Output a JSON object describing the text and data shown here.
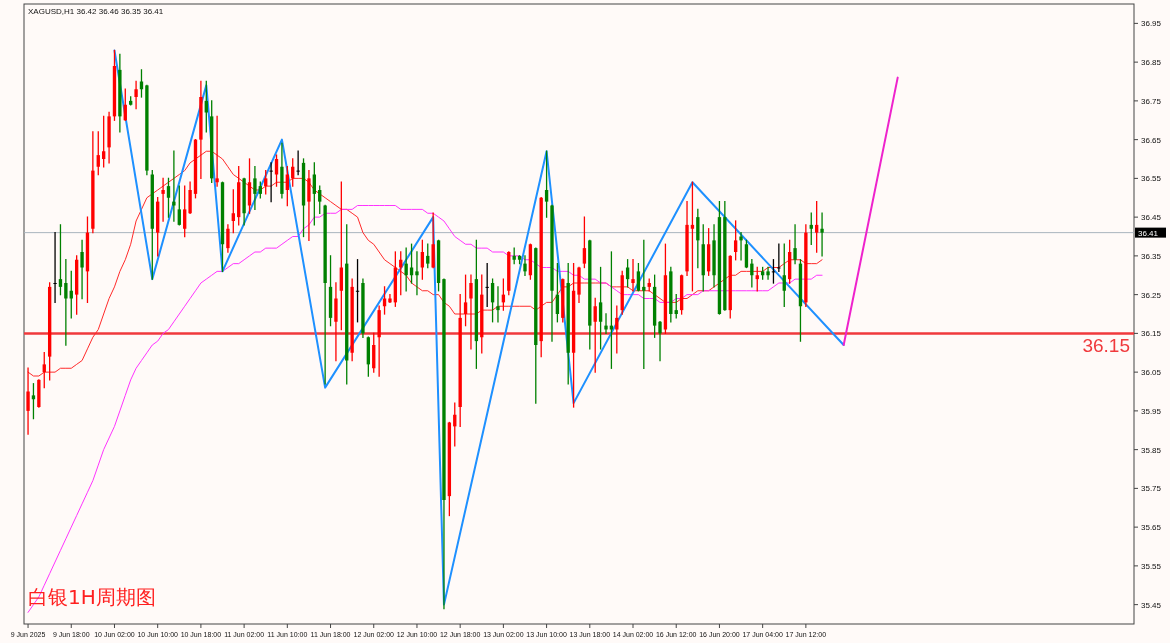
{
  "chart_data": {
    "type": "candlestick",
    "title": "XAGUSD,H1  36.42 36.46 36.35 36.41",
    "annotations": [
      "白银1H周期图"
    ],
    "categories": [
      "9 Jun 2025",
      null,
      null,
      null,
      null,
      null,
      null,
      null,
      "9 Jun 18:00",
      null,
      null,
      null,
      null,
      null,
      null,
      null,
      "10 Jun 02:00",
      null,
      null,
      null,
      null,
      null,
      null,
      null,
      "10 Jun 10:00",
      null,
      null,
      null,
      null,
      null,
      null,
      null,
      "10 Jun 18:00",
      null,
      null,
      null,
      null,
      null,
      null,
      null,
      "11 Jun 02:00",
      null,
      null,
      null,
      null,
      null,
      null,
      null,
      "11 Jun 10:00",
      null,
      null,
      null,
      null,
      null,
      null,
      null,
      "11 Jun 18:00",
      null,
      null,
      null,
      null,
      null,
      null,
      null,
      "12 Jun 02:00",
      null,
      null,
      null,
      null,
      null,
      null,
      null,
      "12 Jun 10:00",
      null,
      null,
      null,
      null,
      null,
      null,
      null,
      "12 Jun 18:00",
      null,
      null,
      null,
      null,
      null,
      null,
      null,
      "13 Jun 02:00",
      null,
      null,
      null,
      null,
      null,
      null,
      null,
      "13 Jun 10:00",
      null,
      null,
      null,
      null,
      null,
      null,
      null,
      "13 Jun 18:00",
      null,
      null,
      null,
      null,
      null,
      null,
      null,
      "14 Jun 02:00",
      null,
      null,
      null,
      null,
      null,
      null,
      null,
      "16 Jun 12:00",
      null,
      null,
      null,
      null,
      null,
      null,
      null,
      "16 Jun 20:00",
      null,
      null,
      null,
      null,
      null,
      null,
      null,
      "17 Jun 04:00",
      null,
      null,
      null,
      null,
      null,
      null,
      null,
      "17 Jun 12:00",
      null,
      null,
      null,
      null,
      null,
      null,
      null,
      null,
      null,
      null,
      null,
      null,
      null,
      null,
      null,
      null,
      null,
      null,
      null,
      null,
      null,
      null,
      null,
      null,
      null,
      null,
      null,
      null,
      null,
      null,
      null,
      null,
      null,
      null,
      null,
      null,
      null,
      null,
      null,
      null,
      null,
      null,
      null,
      null,
      null,
      null,
      null,
      null,
      null,
      null,
      null,
      null,
      null,
      null,
      null,
      null,
      null,
      null,
      null,
      null
    ],
    "ohlc": [
      [
        35.95,
        36.06,
        35.89,
        36.0
      ],
      [
        35.99,
        36.02,
        35.93,
        35.98
      ],
      [
        35.96,
        36.03,
        35.96,
        36.03
      ],
      [
        36.05,
        36.1,
        36.01,
        36.07
      ],
      [
        36.09,
        36.28,
        36.03,
        36.27
      ],
      [
        36.28,
        36.41,
        36.23,
        36.28
      ],
      [
        36.29,
        36.43,
        36.25,
        36.27
      ],
      [
        36.28,
        36.34,
        36.12,
        36.24
      ],
      [
        36.26,
        36.31,
        36.19,
        36.24
      ],
      [
        36.25,
        36.35,
        36.2,
        36.34
      ],
      [
        36.36,
        36.39,
        36.24,
        36.32
      ],
      [
        36.31,
        36.45,
        36.23,
        36.41
      ],
      [
        36.42,
        36.67,
        36.41,
        36.57
      ],
      [
        36.58,
        36.67,
        36.56,
        36.61
      ],
      [
        36.6,
        36.71,
        36.58,
        36.62
      ],
      [
        36.63,
        36.72,
        36.59,
        36.71
      ],
      [
        36.71,
        36.88,
        36.7,
        36.84
      ],
      [
        36.83,
        36.87,
        36.67,
        36.71
      ],
      [
        36.7,
        36.78,
        36.7,
        36.74
      ],
      [
        36.75,
        36.76,
        36.74,
        36.74
      ],
      [
        36.76,
        36.8,
        36.73,
        36.78
      ],
      [
        36.8,
        36.83,
        36.76,
        36.78
      ],
      [
        36.79,
        36.79,
        36.56,
        36.57
      ],
      [
        36.56,
        36.57,
        36.29,
        36.42
      ],
      [
        36.41,
        36.5,
        36.35,
        36.49
      ],
      [
        36.51,
        36.55,
        36.44,
        36.52
      ],
      [
        36.53,
        36.55,
        36.45,
        36.5
      ],
      [
        36.49,
        36.62,
        36.44,
        36.48
      ],
      [
        36.47,
        36.53,
        36.43,
        36.43
      ],
      [
        36.42,
        36.53,
        36.4,
        36.47
      ],
      [
        36.46,
        36.54,
        36.46,
        36.52
      ],
      [
        36.51,
        36.65,
        36.5,
        36.65
      ],
      [
        36.65,
        36.8,
        36.55,
        36.76
      ],
      [
        36.75,
        36.8,
        36.67,
        36.72
      ],
      [
        36.71,
        36.75,
        36.54,
        36.55
      ],
      [
        36.54,
        36.71,
        36.53,
        36.55
      ],
      [
        36.54,
        36.54,
        36.31,
        36.38
      ],
      [
        36.37,
        36.43,
        36.36,
        36.42
      ],
      [
        36.44,
        36.52,
        36.41,
        36.46
      ],
      [
        36.45,
        36.58,
        36.43,
        36.54
      ],
      [
        36.55,
        36.55,
        36.43,
        36.46
      ],
      [
        36.48,
        36.6,
        36.46,
        36.54
      ],
      [
        36.55,
        36.58,
        36.47,
        36.51
      ],
      [
        36.53,
        36.54,
        36.5,
        36.51
      ],
      [
        36.53,
        36.57,
        36.51,
        36.55
      ],
      [
        36.57,
        36.59,
        36.49,
        36.57
      ],
      [
        36.56,
        36.61,
        36.53,
        36.6
      ],
      [
        36.58,
        36.64,
        36.5,
        36.51
      ],
      [
        36.52,
        36.58,
        36.48,
        36.56
      ],
      [
        36.55,
        36.6,
        36.53,
        36.58
      ],
      [
        36.57,
        36.62,
        36.56,
        36.57
      ],
      [
        36.59,
        36.6,
        36.4,
        36.48
      ],
      [
        36.49,
        36.57,
        36.39,
        36.55
      ],
      [
        36.56,
        36.59,
        36.43,
        36.51
      ],
      [
        36.52,
        36.53,
        36.46,
        36.49
      ],
      [
        36.48,
        36.48,
        36.02,
        36.28
      ],
      [
        36.27,
        36.35,
        36.17,
        36.19
      ],
      [
        36.18,
        36.28,
        36.08,
        36.24
      ],
      [
        36.26,
        36.54,
        36.16,
        36.32
      ],
      [
        36.33,
        36.43,
        36.02,
        36.08
      ],
      [
        36.1,
        36.29,
        36.08,
        36.27
      ],
      [
        36.26,
        36.34,
        36.18,
        36.26
      ],
      [
        36.28,
        36.29,
        36.14,
        36.15
      ],
      [
        36.14,
        36.14,
        36.04,
        36.07
      ],
      [
        36.06,
        36.15,
        36.05,
        36.12
      ],
      [
        36.14,
        36.22,
        36.04,
        36.21
      ],
      [
        36.22,
        36.27,
        36.2,
        36.24
      ],
      [
        36.23,
        36.25,
        36.23,
        36.24
      ],
      [
        36.23,
        36.36,
        36.22,
        36.32
      ],
      [
        36.32,
        36.36,
        36.25,
        36.34
      ],
      [
        36.33,
        36.37,
        36.26,
        36.3
      ],
      [
        36.32,
        36.38,
        36.28,
        36.3
      ],
      [
        36.31,
        36.36,
        36.25,
        36.3
      ],
      [
        36.32,
        36.39,
        36.29,
        36.36
      ],
      [
        36.35,
        36.38,
        36.32,
        36.33
      ],
      [
        36.32,
        36.46,
        36.32,
        36.38
      ],
      [
        36.39,
        36.39,
        36.26,
        36.28
      ],
      [
        36.29,
        36.29,
        35.44,
        35.72
      ],
      [
        35.73,
        35.92,
        35.68,
        35.92
      ],
      [
        35.91,
        35.97,
        35.86,
        35.94
      ],
      [
        35.96,
        36.25,
        35.91,
        36.19
      ],
      [
        36.2,
        36.3,
        36.17,
        36.23
      ],
      [
        36.24,
        36.3,
        36.11,
        36.28
      ],
      [
        36.29,
        36.39,
        36.06,
        36.13
      ],
      [
        36.14,
        36.3,
        36.1,
        36.25
      ],
      [
        36.27,
        36.33,
        36.22,
        36.27
      ],
      [
        36.28,
        36.29,
        36.18,
        36.23
      ],
      [
        36.22,
        36.27,
        36.18,
        36.21
      ],
      [
        36.23,
        36.29,
        36.21,
        36.25
      ],
      [
        36.26,
        36.36,
        36.25,
        36.36
      ],
      [
        36.35,
        36.37,
        36.33,
        36.34
      ],
      [
        36.35,
        36.35,
        36.33,
        36.34
      ],
      [
        36.33,
        36.35,
        36.3,
        36.31
      ],
      [
        36.3,
        36.38,
        36.29,
        36.38
      ],
      [
        36.37,
        36.37,
        35.97,
        36.12
      ],
      [
        36.13,
        36.5,
        36.09,
        36.5
      ],
      [
        36.52,
        36.62,
        36.45,
        36.49
      ],
      [
        36.48,
        36.48,
        36.13,
        36.26
      ],
      [
        36.25,
        36.33,
        36.18,
        36.2
      ],
      [
        36.19,
        36.29,
        36.18,
        36.29
      ],
      [
        36.28,
        36.33,
        36.02,
        36.1
      ],
      [
        36.1,
        36.33,
        35.96,
        36.26
      ],
      [
        36.25,
        36.32,
        36.23,
        36.32
      ],
      [
        36.33,
        36.45,
        36.32,
        36.37
      ],
      [
        36.39,
        36.39,
        36.11,
        36.17
      ],
      [
        36.18,
        36.24,
        36.05,
        36.22
      ],
      [
        36.23,
        36.32,
        36.11,
        36.18
      ],
      [
        36.17,
        36.2,
        36.15,
        36.16
      ],
      [
        36.17,
        36.36,
        36.06,
        36.16
      ],
      [
        36.16,
        36.22,
        36.1,
        36.19
      ],
      [
        36.21,
        36.31,
        36.2,
        36.3
      ],
      [
        36.32,
        36.34,
        36.27,
        36.29
      ],
      [
        36.28,
        36.34,
        36.26,
        36.29
      ],
      [
        36.31,
        36.33,
        36.26,
        36.26
      ],
      [
        36.27,
        36.39,
        36.06,
        36.26
      ],
      [
        36.27,
        36.29,
        36.26,
        36.28
      ],
      [
        36.27,
        36.3,
        36.14,
        36.17
      ],
      [
        36.18,
        36.18,
        36.08,
        36.15
      ],
      [
        36.16,
        36.38,
        36.15,
        36.3
      ],
      [
        36.31,
        36.32,
        36.18,
        36.2
      ],
      [
        36.21,
        36.25,
        36.19,
        36.2
      ],
      [
        36.21,
        36.3,
        36.2,
        36.3
      ],
      [
        36.31,
        36.49,
        36.3,
        36.43
      ],
      [
        36.42,
        36.54,
        36.26,
        36.43
      ],
      [
        36.45,
        36.47,
        36.32,
        36.39
      ],
      [
        36.38,
        36.43,
        36.26,
        36.3
      ],
      [
        36.31,
        36.42,
        36.3,
        36.38
      ],
      [
        36.39,
        36.43,
        36.27,
        36.3
      ],
      [
        36.45,
        36.49,
        36.2,
        36.2
      ],
      [
        36.45,
        36.49,
        36.21,
        36.21
      ],
      [
        36.21,
        36.35,
        36.19,
        36.35
      ],
      [
        36.36,
        36.44,
        36.34,
        36.39
      ],
      [
        36.4,
        36.41,
        36.34,
        36.39
      ],
      [
        36.38,
        36.39,
        36.32,
        36.32
      ],
      [
        36.33,
        36.34,
        36.27,
        36.3
      ],
      [
        36.29,
        36.32,
        36.26,
        36.3
      ],
      [
        36.31,
        36.32,
        36.29,
        36.3
      ],
      [
        36.31,
        36.32,
        36.29,
        36.3
      ],
      [
        36.31,
        36.34,
        36.28,
        36.31
      ],
      [
        36.32,
        36.38,
        36.31,
        36.32
      ],
      [
        36.3,
        36.38,
        36.22,
        36.26
      ],
      [
        36.29,
        36.39,
        36.28,
        36.36
      ],
      [
        36.37,
        36.43,
        36.33,
        36.34
      ],
      [
        36.33,
        36.34,
        36.13,
        36.22
      ],
      [
        36.23,
        36.43,
        36.22,
        36.41
      ],
      [
        36.43,
        36.46,
        36.38,
        36.42
      ],
      [
        36.41,
        36.49,
        36.36,
        36.43
      ],
      [
        36.42,
        36.46,
        36.35,
        36.41
      ],
      null,
      null,
      null,
      null,
      null,
      null,
      null,
      null,
      null,
      null,
      null,
      null,
      null,
      null,
      null,
      null,
      null,
      null,
      null,
      null,
      null,
      null,
      null,
      null,
      null,
      null,
      null,
      null,
      null,
      null,
      null,
      null,
      null,
      null,
      null,
      null,
      null,
      null,
      null,
      null,
      null,
      null,
      null,
      null,
      null,
      null,
      null,
      null,
      null,
      null,
      null,
      null,
      null,
      null,
      null,
      null,
      null
    ],
    "series": [
      {
        "type": "line",
        "color": "#ff2a2a",
        "values": [
          36.05,
          36.04,
          36.04,
          36.05,
          36.05,
          36.05,
          36.06,
          36.06,
          36.06,
          36.07,
          36.08,
          36.11,
          36.14,
          36.16,
          36.2,
          36.24,
          36.27,
          36.31,
          36.34,
          36.38,
          36.44,
          36.47,
          36.5,
          36.51,
          36.52,
          36.53,
          36.54,
          36.55,
          36.56,
          36.57,
          36.59,
          36.6,
          36.61,
          36.62,
          36.62,
          36.61,
          36.6,
          36.58,
          36.56,
          36.55,
          36.54,
          36.53,
          36.52,
          36.52,
          36.53,
          36.53,
          36.54,
          36.54,
          36.54,
          36.55,
          36.55,
          36.55,
          36.54,
          36.52,
          36.51,
          36.5,
          36.49,
          36.48,
          36.47,
          36.47,
          36.46,
          36.45,
          36.41,
          36.39,
          36.38,
          36.36,
          36.34,
          36.33,
          36.32,
          36.31,
          36.3,
          36.28,
          36.27,
          36.26,
          36.26,
          36.25,
          36.25,
          36.23,
          36.22,
          36.2,
          36.2,
          36.2,
          36.2,
          36.2,
          36.21,
          36.21,
          36.21,
          36.22,
          36.22,
          36.22,
          36.22,
          36.22,
          36.22,
          36.22,
          36.21,
          36.22,
          36.23,
          36.23,
          36.25,
          36.27,
          36.27,
          36.28,
          36.28,
          36.28,
          36.28,
          36.28,
          36.28,
          36.28,
          36.27,
          36.27,
          36.27,
          36.27,
          36.26,
          36.26,
          36.26,
          36.26,
          36.25,
          36.24,
          36.23,
          36.23,
          36.23,
          36.24,
          36.24,
          36.25,
          36.26,
          36.26,
          36.26,
          36.27,
          36.28,
          36.29,
          36.3,
          36.3,
          36.31,
          36.31,
          36.31,
          36.31,
          36.31,
          36.32,
          36.32,
          36.32,
          36.33,
          36.34,
          36.34,
          36.34,
          36.33,
          36.33,
          36.33,
          36.34,
          null,
          null,
          null,
          null,
          null,
          null,
          null,
          null,
          null,
          null,
          null,
          null,
          null,
          null,
          null,
          null,
          null,
          null,
          null,
          null,
          null,
          null,
          null,
          null,
          null,
          null,
          null,
          null,
          null,
          null,
          null,
          null,
          null,
          null,
          null,
          null,
          null,
          null,
          null,
          null,
          null,
          null,
          null,
          null,
          null,
          null,
          null,
          null,
          null,
          null,
          null,
          null,
          null,
          null,
          null,
          null,
          null
        ]
      },
      {
        "type": "line",
        "color": "#ff33ff",
        "values": [
          35.43,
          35.45,
          35.47,
          35.5,
          35.53,
          35.56,
          35.59,
          35.62,
          35.65,
          35.68,
          35.71,
          35.74,
          35.77,
          35.81,
          35.85,
          35.88,
          35.91,
          35.95,
          35.99,
          36.03,
          36.06,
          36.08,
          36.1,
          36.12,
          36.13,
          36.15,
          36.16,
          36.18,
          36.2,
          36.22,
          36.24,
          36.26,
          36.28,
          36.29,
          36.3,
          36.31,
          36.31,
          36.32,
          36.33,
          36.33,
          36.34,
          36.35,
          36.36,
          36.36,
          36.37,
          36.37,
          36.37,
          36.38,
          36.39,
          36.4,
          36.4,
          36.42,
          36.43,
          36.45,
          36.45,
          36.46,
          36.46,
          36.46,
          36.47,
          36.47,
          36.47,
          36.48,
          36.48,
          36.48,
          36.48,
          36.48,
          36.48,
          36.48,
          36.48,
          36.47,
          36.47,
          36.47,
          36.47,
          36.47,
          36.46,
          36.46,
          36.45,
          36.44,
          36.42,
          36.4,
          36.39,
          36.38,
          36.38,
          36.37,
          36.37,
          36.37,
          36.36,
          36.36,
          36.36,
          36.35,
          36.35,
          36.35,
          36.34,
          36.34,
          36.33,
          36.32,
          36.32,
          36.32,
          36.31,
          36.31,
          36.31,
          36.3,
          36.3,
          36.29,
          36.29,
          36.29,
          36.28,
          36.28,
          36.27,
          36.26,
          36.25,
          36.25,
          36.25,
          36.25,
          36.24,
          36.24,
          36.24,
          36.23,
          36.23,
          36.23,
          36.24,
          36.24,
          36.25,
          36.25,
          36.25,
          36.26,
          36.26,
          36.26,
          36.26,
          36.26,
          36.26,
          36.26,
          36.26,
          36.26,
          36.26,
          36.26,
          36.26,
          36.26,
          36.27,
          36.28,
          36.28,
          36.28,
          36.29,
          36.29,
          36.29,
          36.29,
          36.3,
          36.3,
          null,
          null,
          null,
          null,
          null,
          null,
          null,
          null,
          null,
          null,
          null,
          null,
          null,
          null,
          null,
          null,
          null,
          null,
          null,
          null,
          null,
          null,
          null,
          null,
          null,
          null,
          null,
          null,
          null,
          null,
          null,
          null,
          null,
          null,
          null,
          null,
          null,
          null,
          null,
          null,
          null,
          null,
          null,
          null,
          null,
          null,
          null,
          null,
          null,
          null,
          null,
          null,
          null,
          null,
          null,
          null,
          null
        ]
      },
      {
        "type": "line",
        "color": "#1e90ff",
        "values": [
          null,
          null,
          null,
          null,
          null,
          null,
          null,
          null,
          null,
          null,
          null,
          null,
          null,
          null,
          null,
          null,
          36.88,
          null,
          null,
          null,
          null,
          null,
          null,
          36.29,
          null,
          null,
          null,
          null,
          null,
          null,
          null,
          null,
          null,
          36.79,
          null,
          null,
          36.31,
          null,
          null,
          null,
          null,
          null,
          null,
          null,
          null,
          null,
          null,
          36.65,
          null,
          null,
          null,
          null,
          null,
          null,
          null,
          36.01,
          null,
          null,
          null,
          null,
          null,
          null,
          null,
          null,
          null,
          null,
          null,
          null,
          null,
          null,
          null,
          null,
          null,
          null,
          null,
          36.45,
          null,
          35.45,
          null,
          null,
          null,
          null,
          null,
          null,
          null,
          null,
          null,
          null,
          null,
          null,
          null,
          null,
          null,
          null,
          null,
          null,
          36.62,
          null,
          null,
          null,
          null,
          35.97,
          null,
          null,
          null,
          null,
          null,
          null,
          null,
          null,
          null,
          null,
          null,
          null,
          null,
          null,
          null,
          null,
          null,
          null,
          null,
          null,
          null,
          36.54,
          null,
          null,
          null,
          null,
          null,
          null,
          null,
          null,
          null,
          null,
          null,
          null,
          null,
          null,
          null,
          null,
          null,
          null,
          null,
          null,
          null,
          null,
          null,
          null,
          null,
          null,
          null,
          36.12,
          null,
          null,
          null,
          null,
          null,
          null,
          null,
          null,
          null,
          null,
          null,
          null,
          null,
          null,
          null,
          null,
          null,
          null,
          null,
          null,
          null,
          null,
          null,
          null,
          null,
          null,
          null,
          null,
          null,
          null,
          null,
          null,
          null,
          null,
          null,
          null,
          null,
          null,
          null,
          null,
          null,
          null,
          null,
          null,
          null,
          null,
          null,
          null,
          null,
          null,
          null,
          null,
          null
        ]
      },
      {
        "type": "line",
        "color": "#ee22cc",
        "values": [
          null,
          null,
          null,
          null,
          null,
          null,
          null,
          null,
          null,
          null,
          null,
          null,
          null,
          null,
          null,
          null,
          null,
          null,
          null,
          null,
          null,
          null,
          null,
          null,
          null,
          null,
          null,
          null,
          null,
          null,
          null,
          null,
          null,
          null,
          null,
          null,
          null,
          null,
          null,
          null,
          null,
          null,
          null,
          null,
          null,
          null,
          null,
          null,
          null,
          null,
          null,
          null,
          null,
          null,
          null,
          null,
          null,
          null,
          null,
          null,
          null,
          null,
          null,
          null,
          null,
          null,
          null,
          null,
          null,
          null,
          null,
          null,
          null,
          null,
          null,
          null,
          null,
          null,
          null,
          null,
          null,
          null,
          null,
          null,
          null,
          null,
          null,
          null,
          null,
          null,
          null,
          null,
          null,
          null,
          null,
          null,
          null,
          null,
          null,
          null,
          null,
          null,
          null,
          null,
          null,
          null,
          null,
          null,
          null,
          null,
          null,
          null,
          null,
          null,
          null,
          null,
          null,
          null,
          null,
          null,
          null,
          null,
          null,
          null,
          null,
          null,
          null,
          null,
          null,
          null,
          null,
          null,
          null,
          null,
          null,
          null,
          null,
          null,
          null,
          null,
          null,
          null,
          null,
          null,
          null,
          null,
          null,
          null,
          null,
          null,
          null,
          36.12,
          null,
          null,
          null,
          null,
          null,
          null,
          null,
          null,
          null,
          36.81,
          null,
          null,
          null,
          null,
          null,
          null,
          null,
          null,
          null,
          null,
          null,
          null,
          null,
          null,
          null,
          null,
          null,
          null,
          null,
          null,
          null,
          null,
          null,
          null,
          null,
          null,
          null,
          null,
          null,
          null,
          null,
          null,
          null,
          null,
          null,
          null,
          null,
          null,
          null,
          null,
          null,
          null,
          null
        ]
      }
    ],
    "ylim": [
      35.4,
      37.0
    ],
    "yticks": [
      36.95,
      36.85,
      36.75,
      36.65,
      36.55,
      36.45,
      36.35,
      36.25,
      36.15,
      36.05,
      35.95,
      35.85,
      35.75,
      35.65,
      35.55,
      35.45
    ],
    "ref_lines": [
      {
        "axis": "y",
        "value": 36.41,
        "label": "36.41",
        "color": "#aab4be"
      },
      {
        "axis": "y",
        "value": 36.15,
        "label": "36.15",
        "color": "#f0393c"
      }
    ]
  }
}
